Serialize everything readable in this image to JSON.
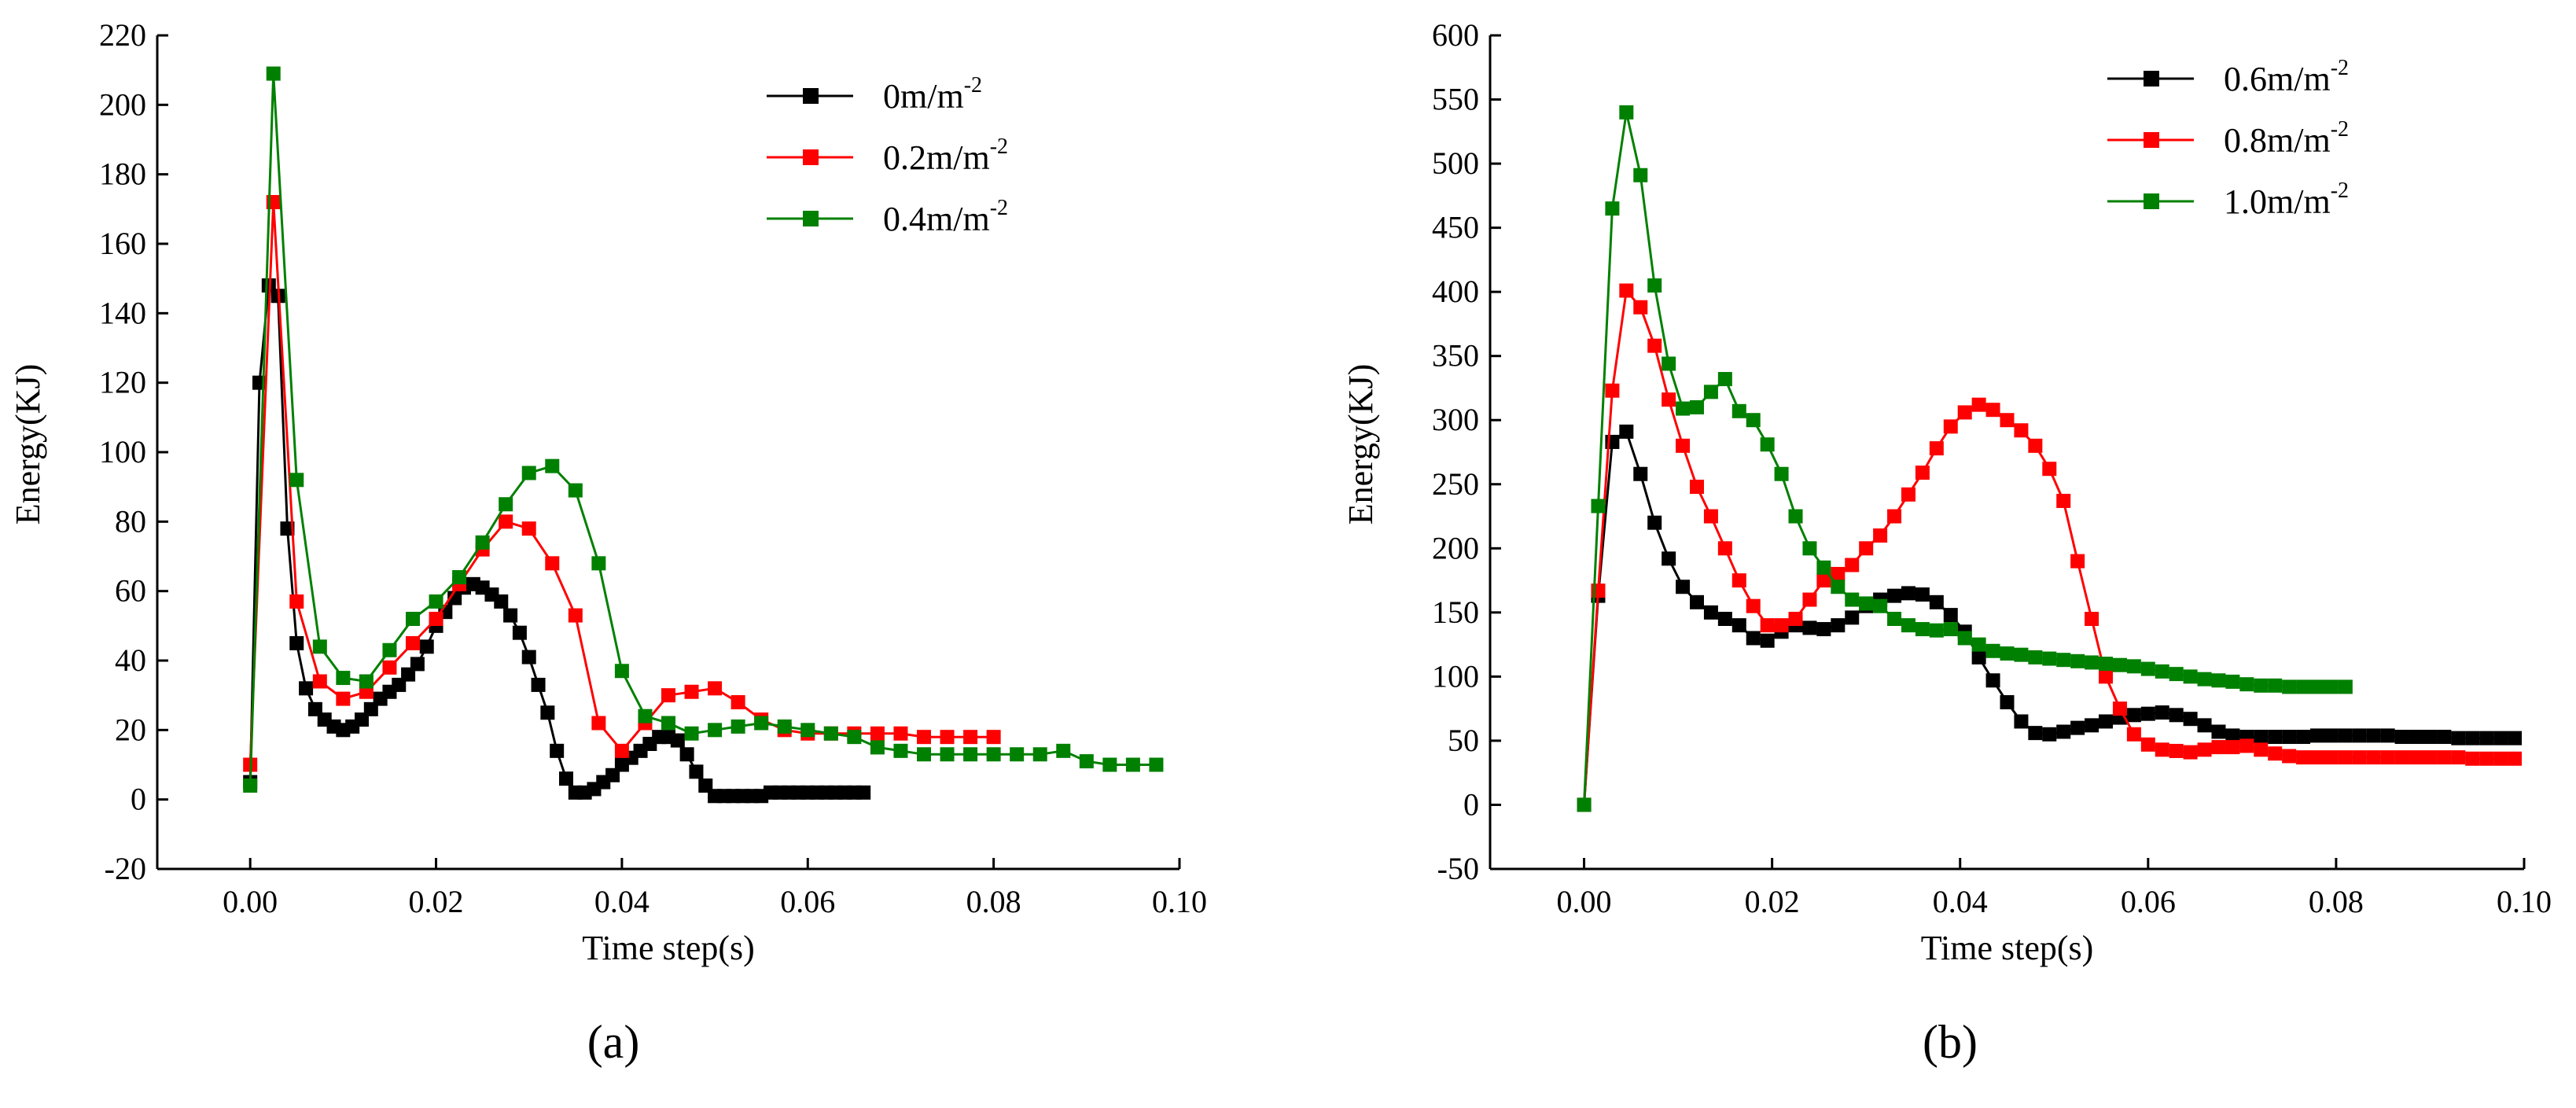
{
  "chart_data": [
    {
      "type": "line",
      "panel_label": "(a)",
      "xlabel": "Time step(s)",
      "ylabel": "Energy(KJ)",
      "xlim": [
        -0.01,
        0.1
      ],
      "ylim": [
        -20,
        220
      ],
      "xticks": [
        "0.00",
        "0.02",
        "0.04",
        "0.06",
        "0.08",
        "0.10"
      ],
      "yticks": [
        "-20",
        "0",
        "20",
        "40",
        "60",
        "80",
        "100",
        "120",
        "140",
        "160",
        "180",
        "200",
        "220"
      ],
      "legend_position": "top-right",
      "series": [
        {
          "name": "0m/m",
          "name_sup": "-2",
          "color": "#000000",
          "x": [
            0,
            0.001,
            0.002,
            0.003,
            0.004,
            0.005,
            0.006,
            0.007,
            0.008,
            0.009,
            0.01,
            0.011,
            0.012,
            0.013,
            0.014,
            0.015,
            0.016,
            0.017,
            0.018,
            0.019,
            0.02,
            0.021,
            0.022,
            0.023,
            0.024,
            0.025,
            0.026,
            0.027,
            0.028,
            0.029,
            0.03,
            0.031,
            0.032,
            0.033,
            0.034,
            0.035,
            0.036,
            0.037,
            0.038,
            0.039,
            0.04,
            0.041,
            0.042,
            0.043,
            0.044,
            0.045,
            0.046,
            0.047,
            0.048,
            0.049,
            0.05,
            0.051,
            0.052,
            0.053,
            0.054,
            0.055,
            0.056,
            0.057,
            0.058,
            0.059,
            0.06,
            0.061,
            0.062,
            0.063,
            0.064,
            0.065,
            0.066
          ],
          "y": [
            5,
            120,
            148,
            145,
            78,
            45,
            32,
            26,
            23,
            21,
            20,
            21,
            23,
            26,
            29,
            31,
            33,
            36,
            39,
            44,
            50,
            54,
            58,
            61,
            62,
            61,
            59,
            57,
            53,
            48,
            41,
            33,
            25,
            14,
            6,
            2,
            2,
            3,
            5,
            7,
            10,
            12,
            14,
            16,
            18,
            18,
            17,
            13,
            8,
            4,
            1,
            1,
            1,
            1,
            1,
            1,
            2,
            2,
            2,
            2,
            2,
            2,
            2,
            2,
            2,
            2,
            2
          ]
        },
        {
          "name": "0.2m/m",
          "name_sup": "-2",
          "color": "#ff0000",
          "x": [
            0,
            0.0025,
            0.005,
            0.0075,
            0.01,
            0.0125,
            0.015,
            0.0175,
            0.02,
            0.0225,
            0.025,
            0.0275,
            0.03,
            0.0325,
            0.035,
            0.0375,
            0.04,
            0.0425,
            0.045,
            0.0475,
            0.05,
            0.0525,
            0.055,
            0.0575,
            0.06,
            0.0625,
            0.065,
            0.0675,
            0.07,
            0.0725,
            0.075,
            0.0775,
            0.08
          ],
          "y": [
            10,
            172,
            57,
            34,
            29,
            31,
            38,
            45,
            52,
            62,
            72,
            80,
            78,
            68,
            53,
            22,
            14,
            22,
            30,
            31,
            32,
            28,
            23,
            20,
            19,
            19,
            19,
            19,
            19,
            18,
            18,
            18,
            18
          ]
        },
        {
          "name": "0.4m/m",
          "name_sup": "-2",
          "color": "#008000",
          "x": [
            0,
            0.0025,
            0.005,
            0.0075,
            0.01,
            0.0125,
            0.015,
            0.0175,
            0.02,
            0.0225,
            0.025,
            0.0275,
            0.03,
            0.0325,
            0.035,
            0.0375,
            0.04,
            0.0425,
            0.045,
            0.0475,
            0.05,
            0.0525,
            0.055,
            0.0575,
            0.06,
            0.0625,
            0.065,
            0.0675,
            0.07,
            0.0725,
            0.075,
            0.0775,
            0.08,
            0.0825,
            0.085,
            0.0875,
            0.09,
            0.0925,
            0.095,
            0.0975
          ],
          "y": [
            4,
            209,
            92,
            44,
            35,
            34,
            43,
            52,
            57,
            64,
            74,
            85,
            94,
            96,
            89,
            68,
            37,
            24,
            22,
            19,
            20,
            21,
            22,
            21,
            20,
            19,
            18,
            15,
            14,
            13,
            13,
            13,
            13,
            13,
            13,
            14,
            11,
            10,
            10,
            10
          ]
        }
      ]
    },
    {
      "type": "line",
      "panel_label": "(b)",
      "xlabel": "Time step(s)",
      "ylabel": "Energy(KJ)",
      "xlim": [
        -0.01,
        0.1
      ],
      "ylim": [
        -50,
        600
      ],
      "xticks": [
        "0.00",
        "0.02",
        "0.04",
        "0.06",
        "0.08",
        "0.10"
      ],
      "yticks": [
        "-50",
        "0",
        "50",
        "100",
        "150",
        "200",
        "250",
        "300",
        "350",
        "400",
        "450",
        "500",
        "550",
        "600"
      ],
      "legend_position": "top-right",
      "series": [
        {
          "name": "0.6m/m",
          "name_sup": "-2",
          "color": "#000000",
          "x": [
            0,
            0.0015,
            0.003,
            0.0045,
            0.006,
            0.0075,
            0.009,
            0.0105,
            0.012,
            0.0135,
            0.015,
            0.0165,
            0.018,
            0.0195,
            0.021,
            0.0225,
            0.024,
            0.0255,
            0.027,
            0.0285,
            0.03,
            0.0315,
            0.033,
            0.0345,
            0.036,
            0.0375,
            0.039,
            0.0405,
            0.042,
            0.0435,
            0.045,
            0.0465,
            0.048,
            0.0495,
            0.051,
            0.0525,
            0.054,
            0.0555,
            0.057,
            0.0585,
            0.06,
            0.0615,
            0.063,
            0.0645,
            0.066,
            0.0675,
            0.069,
            0.0705,
            0.072,
            0.0735,
            0.075,
            0.0765,
            0.078,
            0.0795,
            0.081,
            0.0825,
            0.084,
            0.0855,
            0.087,
            0.0885,
            0.09,
            0.0915,
            0.093,
            0.0945,
            0.096,
            0.0975,
            0.099
          ],
          "y": [
            0,
            163,
            283,
            291,
            258,
            220,
            192,
            170,
            158,
            150,
            145,
            140,
            130,
            128,
            135,
            140,
            138,
            137,
            140,
            146,
            155,
            160,
            163,
            165,
            164,
            158,
            148,
            135,
            115,
            97,
            80,
            65,
            56,
            55,
            57,
            60,
            62,
            65,
            68,
            70,
            71,
            72,
            70,
            67,
            62,
            57,
            54,
            53,
            53,
            53,
            53,
            53,
            54,
            54,
            54,
            54,
            54,
            54,
            53,
            53,
            53,
            53,
            52,
            52,
            52,
            52,
            52
          ]
        },
        {
          "name": "0.8m/m",
          "name_sup": "-2",
          "color": "#ff0000",
          "x": [
            0,
            0.0015,
            0.003,
            0.0045,
            0.006,
            0.0075,
            0.009,
            0.0105,
            0.012,
            0.0135,
            0.015,
            0.0165,
            0.018,
            0.0195,
            0.021,
            0.0225,
            0.024,
            0.0255,
            0.027,
            0.0285,
            0.03,
            0.0315,
            0.033,
            0.0345,
            0.036,
            0.0375,
            0.039,
            0.0405,
            0.042,
            0.0435,
            0.045,
            0.0465,
            0.048,
            0.0495,
            0.051,
            0.0525,
            0.054,
            0.0555,
            0.057,
            0.0585,
            0.06,
            0.0615,
            0.063,
            0.0645,
            0.066,
            0.0675,
            0.069,
            0.0705,
            0.072,
            0.0735,
            0.075,
            0.0765,
            0.078,
            0.0795,
            0.081,
            0.0825,
            0.084,
            0.0855,
            0.087,
            0.0885,
            0.09,
            0.0915,
            0.093,
            0.0945,
            0.096,
            0.0975,
            0.099
          ],
          "y": [
            0,
            167,
            323,
            401,
            388,
            358,
            316,
            280,
            248,
            225,
            200,
            175,
            155,
            140,
            140,
            145,
            160,
            175,
            180,
            187,
            200,
            210,
            225,
            242,
            259,
            278,
            295,
            306,
            312,
            308,
            300,
            292,
            280,
            262,
            237,
            190,
            145,
            100,
            75,
            55,
            47,
            43,
            42,
            41,
            43,
            45,
            45,
            46,
            43,
            40,
            38,
            37,
            37,
            37,
            37,
            37,
            37,
            37,
            37,
            37,
            37,
            37,
            37,
            36,
            36,
            36,
            36
          ]
        },
        {
          "name": "1.0m/m",
          "name_sup": "-2",
          "color": "#008000",
          "x": [
            0,
            0.0015,
            0.003,
            0.0045,
            0.006,
            0.0075,
            0.009,
            0.0105,
            0.012,
            0.0135,
            0.015,
            0.0165,
            0.018,
            0.0195,
            0.021,
            0.0225,
            0.024,
            0.0255,
            0.027,
            0.0285,
            0.03,
            0.0315,
            0.033,
            0.0345,
            0.036,
            0.0375,
            0.039,
            0.0405,
            0.042,
            0.0435,
            0.045,
            0.0465,
            0.048,
            0.0495,
            0.051,
            0.0525,
            0.054,
            0.0555,
            0.057,
            0.0585,
            0.06,
            0.0615,
            0.063,
            0.0645,
            0.066,
            0.0675,
            0.069,
            0.0705,
            0.072,
            0.0735,
            0.075,
            0.0765,
            0.078,
            0.0795,
            0.081
          ],
          "y": [
            0,
            233,
            465,
            540,
            491,
            405,
            344,
            309,
            310,
            322,
            332,
            307,
            300,
            281,
            258,
            225,
            200,
            185,
            170,
            160,
            157,
            155,
            145,
            140,
            137,
            136,
            137,
            130,
            125,
            120,
            118,
            117,
            115,
            114,
            113,
            112,
            111,
            110,
            109,
            108,
            106,
            104,
            102,
            100,
            98,
            97,
            96,
            94,
            93,
            93,
            92,
            92,
            92,
            92,
            92
          ]
        }
      ]
    }
  ]
}
